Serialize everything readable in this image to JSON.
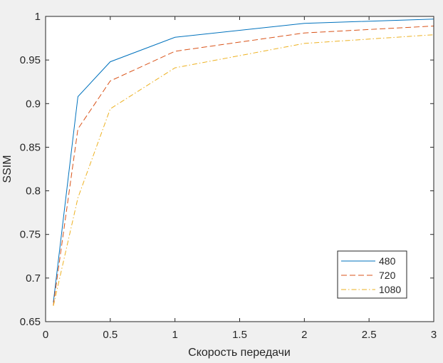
{
  "chart_data": {
    "type": "line",
    "xlabel": "Скорость передачи",
    "ylabel": "SSIM",
    "xlim": [
      0,
      3
    ],
    "ylim": [
      0.65,
      1
    ],
    "x_ticks": [
      "0",
      "0.5",
      "1",
      "1.5",
      "2",
      "2.5",
      "3"
    ],
    "y_ticks": [
      "0.65",
      "0.7",
      "0.75",
      "0.8",
      "0.85",
      "0.9",
      "0.95",
      "1"
    ],
    "grid": false,
    "legend_position": "bottom-right",
    "series": [
      {
        "name": "480",
        "color": "#0072bd",
        "line_style": "solid",
        "x": [
          0.06,
          0.25,
          0.5,
          1,
          2,
          3
        ],
        "y": [
          0.672,
          0.908,
          0.948,
          0.976,
          0.992,
          0.997
        ]
      },
      {
        "name": "720",
        "color": "#d95319",
        "line_style": "dashed",
        "x": [
          0.06,
          0.25,
          0.5,
          1,
          2,
          3
        ],
        "y": [
          0.669,
          0.871,
          0.926,
          0.96,
          0.981,
          0.989
        ]
      },
      {
        "name": "1080",
        "color": "#edb120",
        "line_style": "dash-dot",
        "x": [
          0.06,
          0.25,
          0.5,
          1,
          2,
          3
        ],
        "y": [
          0.668,
          0.792,
          0.894,
          0.941,
          0.969,
          0.979
        ]
      }
    ]
  }
}
